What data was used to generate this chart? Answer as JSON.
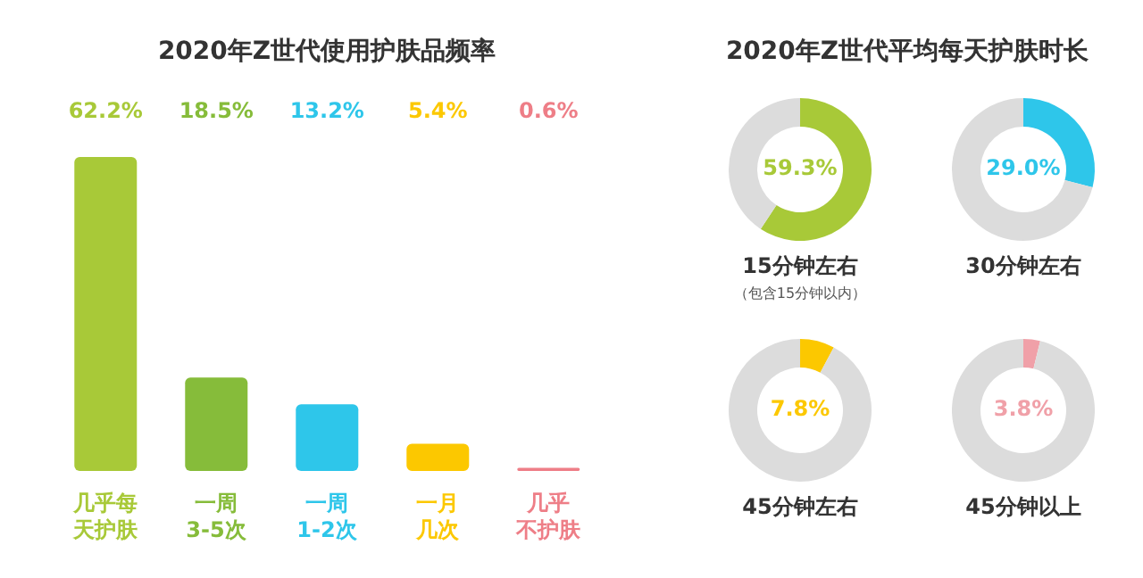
{
  "chart_data": [
    {
      "type": "bar",
      "title": "2020年Z世代使用护肤品频率",
      "categories": [
        "几乎每天护肤",
        "一周3-5次",
        "一周1-2次",
        "一月几次",
        "几乎不护肤"
      ],
      "values": [
        62.2,
        18.5,
        13.2,
        5.4,
        0.6
      ],
      "colors": [
        "#a8c938",
        "#86bc3a",
        "#2ec6ea",
        "#fcc800",
        "#ee7e87"
      ],
      "value_labels": [
        "62.2%",
        "18.5%",
        "13.2%",
        "5.4%",
        "0.6%"
      ],
      "tick_labels": "x"
    },
    {
      "type": "other",
      "title": "2020年Z世代平均每天护肤时长"
    },
    {
      "type": "donut",
      "title": "15分钟左右",
      "categories": [
        null,
        null
      ],
      "values": [
        59.3,
        40.7
      ],
      "colors": [
        "#a8c938",
        "#dcdcdc"
      ],
      "value_labels": [
        "59.3%",
        null
      ],
      "annotations": [
        "（包含15分钟以内）"
      ]
    },
    {
      "type": "donut",
      "title": "30分钟左右",
      "categories": [
        null,
        null
      ],
      "values": [
        29.0,
        71.0
      ],
      "colors": [
        "#2ec6ea",
        "#dcdcdc"
      ],
      "value_labels": [
        "29.0%",
        null
      ]
    },
    {
      "type": "donut",
      "title": "45分钟左右",
      "categories": [
        null,
        null
      ],
      "values": [
        7.8,
        92.2
      ],
      "colors": [
        "#fcc800",
        "#dcdcdc"
      ],
      "value_labels": [
        "7.8%",
        null
      ]
    },
    {
      "type": "donut",
      "title": "45分钟以上",
      "categories": [
        null,
        null
      ],
      "values": [
        3.8,
        96.2
      ],
      "colors": [
        "#f0a0a8",
        "#dcdcdc"
      ],
      "value_labels": [
        "3.8%",
        null
      ]
    }
  ]
}
